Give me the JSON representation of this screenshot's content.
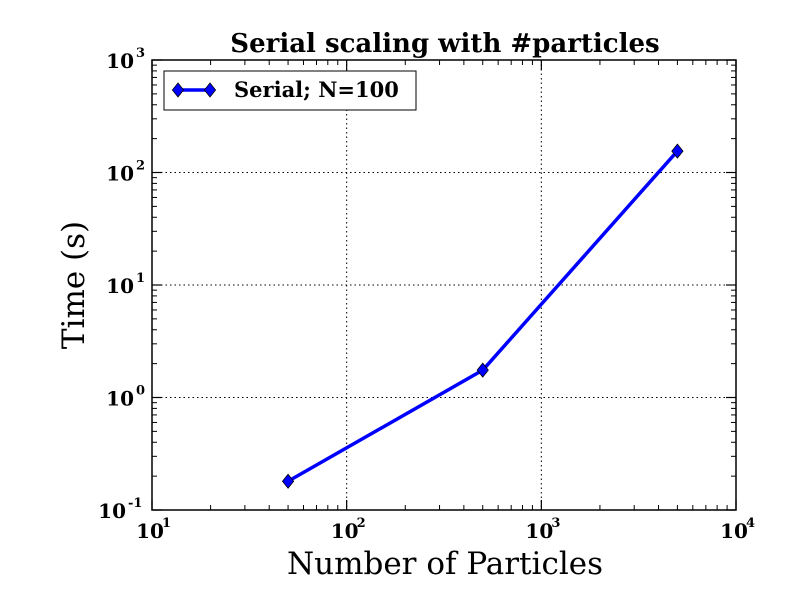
{
  "chart_data": {
    "type": "line",
    "title": "Serial scaling with #particles",
    "xlabel": "Number of Particles",
    "ylabel": "Time (s)",
    "xscale": "log",
    "yscale": "log",
    "xlim": [
      10,
      10000
    ],
    "ylim": [
      0.1,
      1000
    ],
    "grid": true,
    "legend_position": "top-left",
    "x_ticks": [
      {
        "base": "10",
        "exp": "1"
      },
      {
        "base": "10",
        "exp": "2"
      },
      {
        "base": "10",
        "exp": "3"
      },
      {
        "base": "10",
        "exp": "4"
      }
    ],
    "y_ticks": [
      {
        "base": "10",
        "exp": "-1"
      },
      {
        "base": "10",
        "exp": "0"
      },
      {
        "base": "10",
        "exp": "1"
      },
      {
        "base": "10",
        "exp": "2"
      },
      {
        "base": "10",
        "exp": "3"
      }
    ],
    "series": [
      {
        "name": "Serial; N=100",
        "color": "#0000ff",
        "marker": "diamond",
        "x": [
          50,
          500,
          5000
        ],
        "y": [
          0.18,
          1.75,
          155
        ]
      }
    ]
  }
}
